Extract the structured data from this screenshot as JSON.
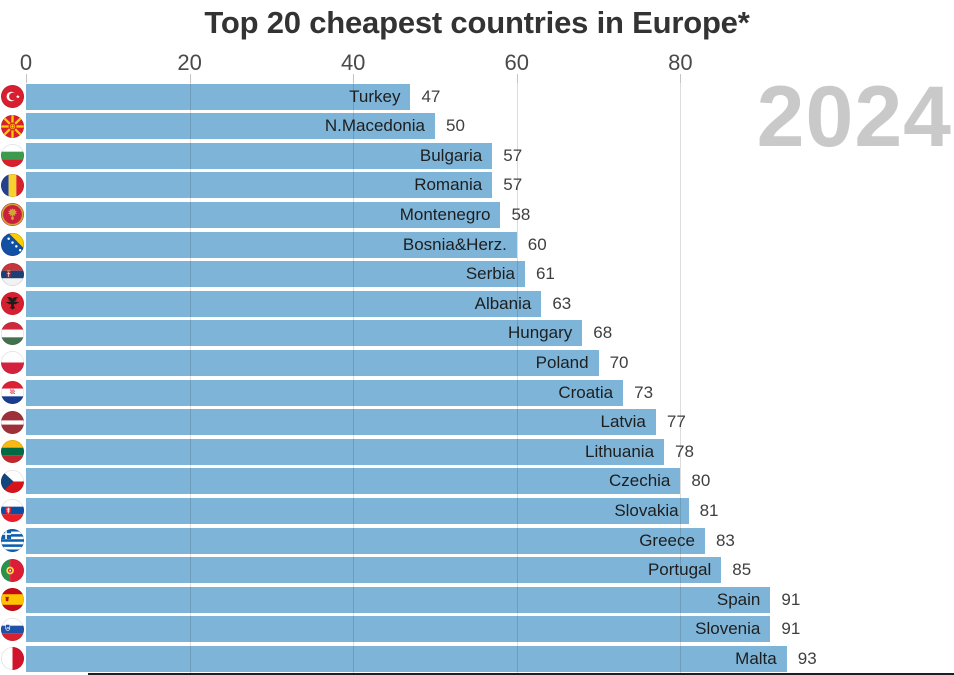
{
  "page": {
    "title": "Top 20 cheapest countries in Europe*",
    "watermark": "2024"
  },
  "chart_data": {
    "type": "bar",
    "orientation": "horizontal",
    "title": "Top 20 cheapest countries in Europe*",
    "xlabel": "",
    "ylabel": "",
    "xlim": [
      0,
      113
    ],
    "axis_position": "top",
    "tick_labels": [
      "0",
      "20",
      "40",
      "60",
      "80"
    ],
    "tick_values": [
      0,
      20,
      40,
      60,
      80
    ],
    "gridline_values": [
      20,
      40,
      60,
      80
    ],
    "grid": true,
    "legend": false,
    "bar_color": "#7db4d8",
    "watermark_text": "2024",
    "categories": [
      "Turkey",
      "N.Macedonia",
      "Bulgaria",
      "Romania",
      "Montenegro",
      "Bosnia&Herz.",
      "Serbia",
      "Albania",
      "Hungary",
      "Poland",
      "Croatia",
      "Latvia",
      "Lithuania",
      "Czechia",
      "Slovakia",
      "Greece",
      "Portugal",
      "Spain",
      "Slovenia",
      "Malta"
    ],
    "values": [
      47,
      50,
      57,
      57,
      58,
      60,
      61,
      63,
      68,
      70,
      73,
      77,
      78,
      80,
      81,
      83,
      85,
      91,
      91,
      93
    ],
    "flag_icons": [
      "turkey-flag-icon",
      "north-macedonia-flag-icon",
      "bulgaria-flag-icon",
      "romania-flag-icon",
      "montenegro-flag-icon",
      "bosnia-herzegovina-flag-icon",
      "serbia-flag-icon",
      "albania-flag-icon",
      "hungary-flag-icon",
      "poland-flag-icon",
      "croatia-flag-icon",
      "latvia-flag-icon",
      "lithuania-flag-icon",
      "czechia-flag-icon",
      "slovakia-flag-icon",
      "greece-flag-icon",
      "portugal-flag-icon",
      "spain-flag-icon",
      "slovenia-flag-icon",
      "malta-flag-icon"
    ],
    "flag_codes": [
      "tr",
      "mk",
      "bg",
      "ro",
      "me",
      "ba",
      "rs",
      "al",
      "hu",
      "pl",
      "hr",
      "lv",
      "lt",
      "cz",
      "sk",
      "gr",
      "pt",
      "es",
      "si",
      "mt"
    ]
  },
  "colors": {
    "bar": "#7db4d8",
    "title_text": "#333333",
    "watermark_text": "#c9c9c9",
    "country_label": "#1e1e1e",
    "value_label": "#3f3f3f",
    "axis_label": "#4a4a4a",
    "gridline": "rgba(40,40,40,0.16)",
    "background": "#ffffff"
  }
}
